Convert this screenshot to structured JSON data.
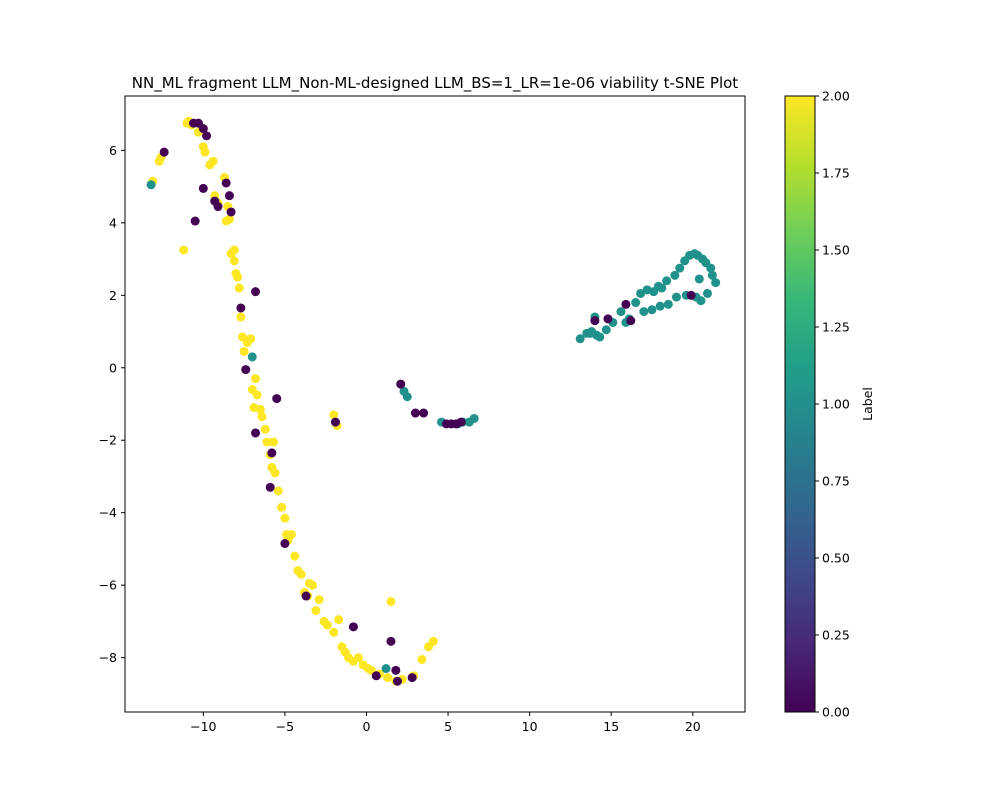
{
  "chart_data": {
    "type": "scatter",
    "title": "NN_ML fragment LLM_Non-ML-designed LLM_BS=1_LR=1e-06 viability t-SNE Plot",
    "xlabel": "",
    "ylabel": "",
    "xlim": [
      -14.8,
      23.2
    ],
    "ylim": [
      -9.5,
      7.5
    ],
    "xticks": [
      -10,
      -5,
      0,
      5,
      10,
      15,
      20
    ],
    "yticks": [
      -8,
      -6,
      -4,
      -2,
      0,
      2,
      4,
      6
    ],
    "colormap": "viridis",
    "colorbar": {
      "label": "Label",
      "range": [
        0.0,
        2.0
      ],
      "ticks": [
        "0.00",
        "0.25",
        "0.50",
        "0.75",
        "1.00",
        "1.25",
        "1.50",
        "1.75",
        "2.00"
      ],
      "stops": [
        "#440154",
        "#482878",
        "#3e4989",
        "#31688e",
        "#26828e",
        "#1f9e89",
        "#35b779",
        "#6ece58",
        "#b5de2b",
        "#fde725"
      ]
    },
    "label_colors": {
      "0": "#440154",
      "1": "#21918c",
      "2": "#fde725"
    },
    "series": [
      {
        "label": 2,
        "x": [
          -13.1,
          -12.7,
          -12.6,
          -11.2,
          -11.0,
          -10.9,
          -10.7,
          -10.3,
          -10.0,
          -9.9,
          -9.6,
          -9.4,
          -9.3,
          -9.1,
          -8.7,
          -8.6,
          -8.5,
          -8.4,
          -8.3,
          -8.1,
          -8.0,
          -8.1,
          -7.9,
          -7.8,
          -7.7,
          -7.6,
          -7.5,
          -7.3,
          -7.1,
          -7.0,
          -6.8,
          -6.9,
          -6.7,
          -6.5,
          -6.4,
          -6.2,
          -6.1,
          -5.9,
          -5.7,
          -5.8,
          -5.6,
          -5.4,
          -5.2,
          -5.0,
          -4.9,
          -4.8,
          -4.6,
          -4.4,
          -4.2,
          -4.0,
          -3.8,
          -3.6,
          -3.5,
          -3.3,
          -3.1,
          -2.9,
          -2.6,
          -2.4,
          -2.0,
          -1.7,
          -1.5,
          -1.3,
          -1.1,
          -0.8,
          -0.5,
          -0.2,
          0.1,
          0.3,
          0.8,
          1.3,
          1.8,
          2.2,
          2.9,
          3.4,
          3.8,
          4.1,
          -2.0,
          -1.8,
          1.5
        ],
        "y": [
          5.15,
          5.7,
          5.8,
          3.25,
          6.75,
          6.8,
          6.7,
          6.5,
          6.1,
          5.95,
          5.6,
          5.7,
          4.75,
          4.55,
          5.25,
          4.05,
          4.45,
          4.1,
          3.15,
          3.25,
          2.6,
          2.95,
          2.5,
          2.2,
          1.4,
          0.85,
          0.45,
          0.7,
          0.8,
          -0.6,
          -0.3,
          -1.1,
          -0.75,
          -1.15,
          -1.35,
          -1.7,
          -2.05,
          -2.4,
          -2.05,
          -2.75,
          -2.9,
          -3.4,
          -3.85,
          -4.15,
          -4.6,
          -4.75,
          -4.6,
          -5.2,
          -5.6,
          -5.7,
          -6.2,
          -6.3,
          -5.95,
          -6.0,
          -6.7,
          -6.4,
          -7.0,
          -7.1,
          -7.3,
          -6.95,
          -7.7,
          -7.85,
          -8.0,
          -8.1,
          -8.0,
          -8.2,
          -8.3,
          -8.35,
          -8.45,
          -8.55,
          -8.65,
          -8.6,
          -8.5,
          -8.05,
          -7.7,
          -7.55,
          -1.3,
          -1.6,
          -6.45
        ]
      },
      {
        "label": 1,
        "x": [
          -13.2,
          -7.0,
          1.2,
          2.3,
          2.5,
          4.6,
          5.6,
          5.9,
          6.3,
          6.6,
          13.1,
          13.5,
          13.8,
          14.1,
          14.3,
          14.7,
          15.1,
          15.6,
          15.9,
          16.5,
          16.8,
          17.2,
          17.6,
          17.9,
          18.1,
          18.4,
          18.9,
          19.2,
          19.5,
          19.8,
          20.1,
          20.3,
          20.6,
          20.8,
          21.1,
          21.4,
          16.1,
          17.0,
          17.5,
          18.0,
          18.5,
          19.0,
          19.6,
          20.2,
          20.5,
          20.9,
          21.2,
          20.4,
          14.0,
          13.7
        ],
        "y": [
          5.05,
          0.3,
          -8.3,
          -0.65,
          -0.8,
          -1.5,
          -1.55,
          -1.5,
          -1.5,
          -1.4,
          0.8,
          0.95,
          1.0,
          0.9,
          0.85,
          1.05,
          1.25,
          1.55,
          1.25,
          1.8,
          2.05,
          2.15,
          2.1,
          2.25,
          2.2,
          2.4,
          2.55,
          2.75,
          2.95,
          3.1,
          3.15,
          3.1,
          3.0,
          2.9,
          2.75,
          2.35,
          1.35,
          1.55,
          1.6,
          1.7,
          1.75,
          1.95,
          2.0,
          1.95,
          1.85,
          2.05,
          2.55,
          2.45,
          1.4,
          0.95
        ]
      },
      {
        "label": 0,
        "x": [
          -12.4,
          -10.6,
          -10.3,
          -10.0,
          -9.8,
          -10.0,
          -9.3,
          -9.1,
          -8.6,
          -8.4,
          -8.3,
          -10.5,
          -6.8,
          -7.7,
          -7.4,
          -5.5,
          -6.8,
          -5.8,
          -5.9,
          -5.0,
          -3.7,
          -1.9,
          -0.8,
          0.6,
          1.5,
          1.8,
          1.9,
          2.1,
          2.8,
          3.0,
          3.5,
          4.9,
          5.2,
          5.5,
          5.8,
          14.0,
          14.8,
          15.9,
          16.2,
          19.9
        ],
        "y": [
          5.95,
          6.75,
          6.75,
          6.6,
          6.4,
          4.95,
          4.6,
          4.45,
          5.1,
          4.75,
          4.3,
          4.05,
          2.1,
          1.65,
          -0.05,
          -0.85,
          -1.8,
          -2.35,
          -3.3,
          -4.85,
          -6.3,
          -1.5,
          -7.15,
          -8.5,
          -7.55,
          -8.35,
          -8.65,
          -0.45,
          -8.55,
          -1.25,
          -1.25,
          -1.55,
          -1.55,
          -1.55,
          -1.5,
          1.3,
          1.35,
          1.75,
          1.3,
          2.0
        ]
      }
    ]
  }
}
